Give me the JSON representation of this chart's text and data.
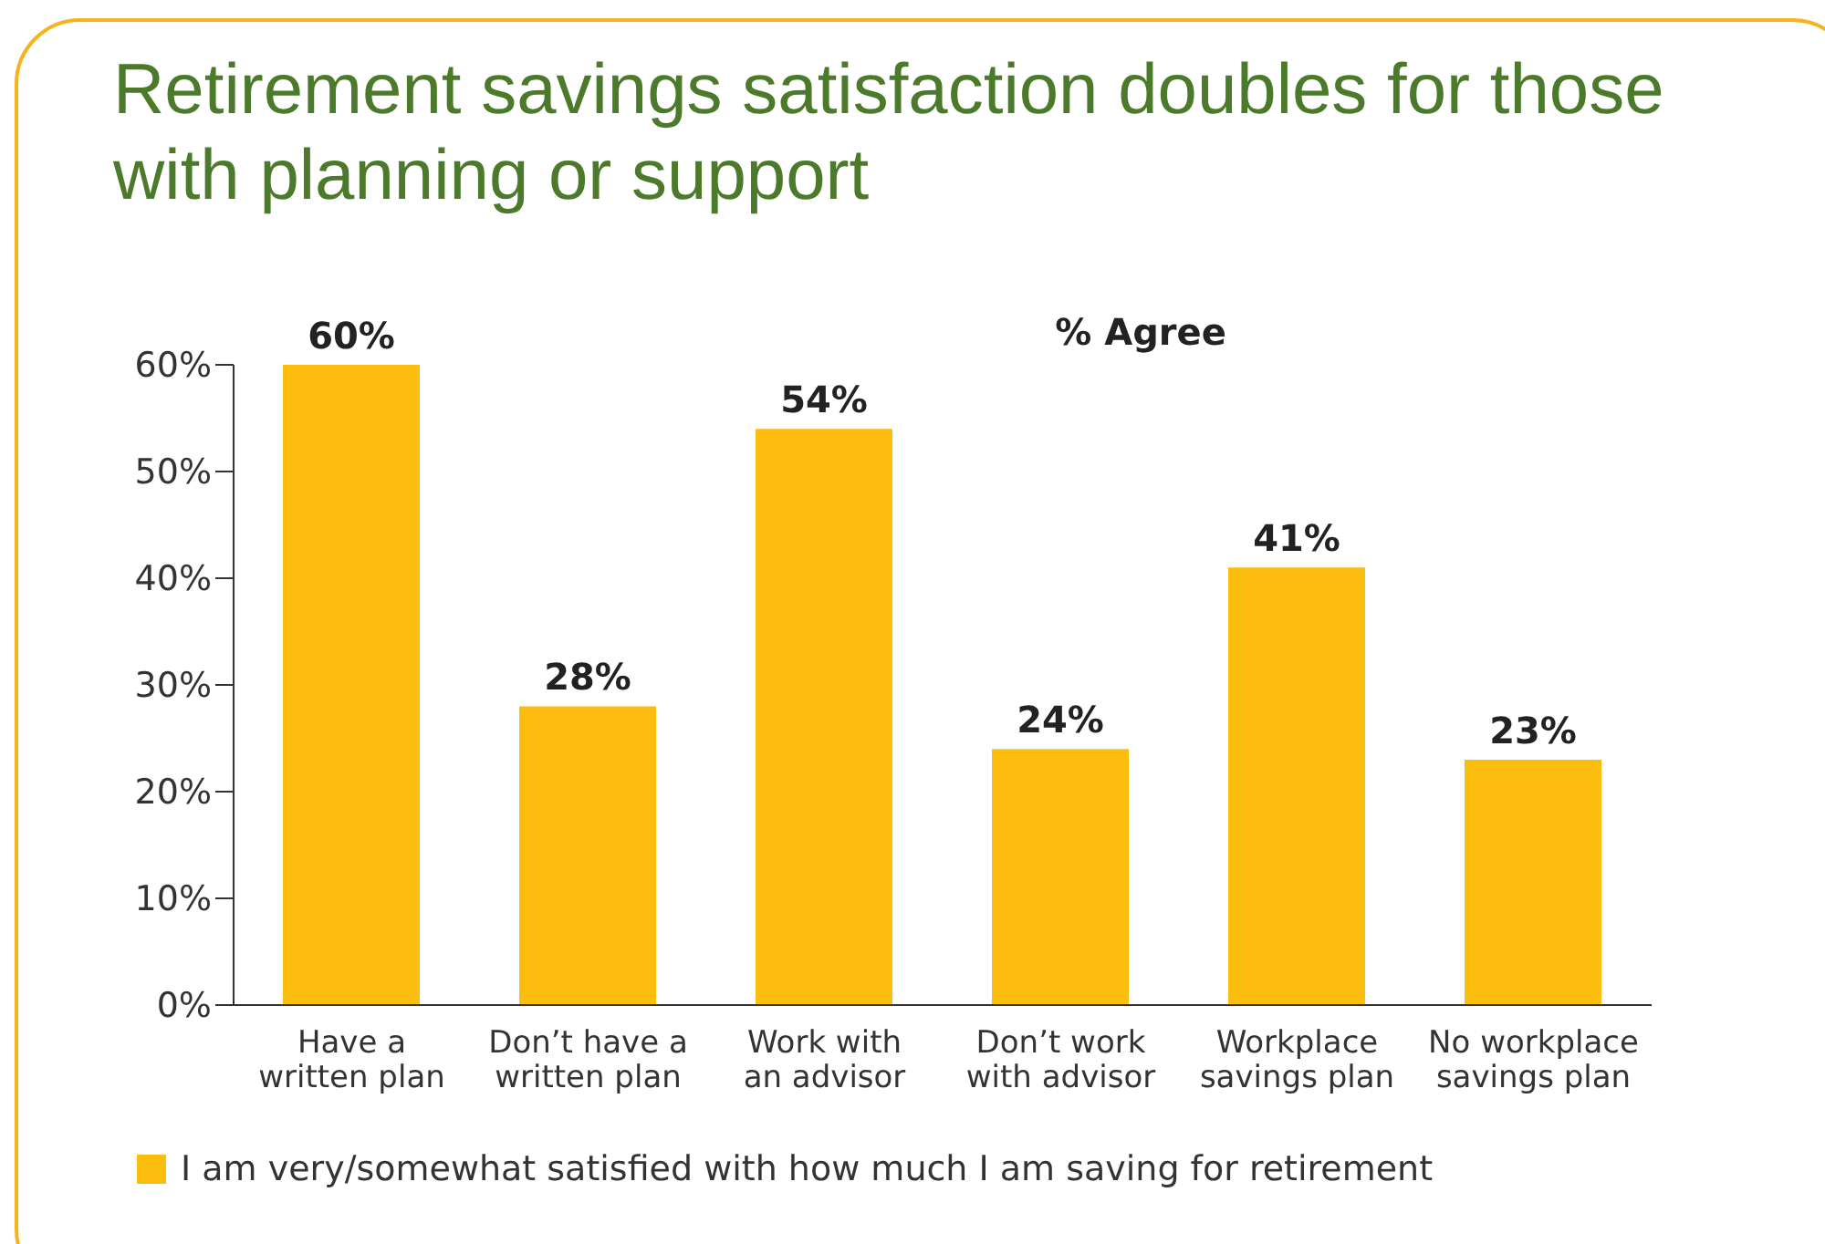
{
  "chart_data": {
    "type": "bar",
    "title": "Retirement savings satisfaction doubles for those with planning or support",
    "subtitle": "% Agree",
    "categories": [
      "Have a written plan",
      "Don’t have a written plan",
      "Work with an advisor",
      "Don’t work with advisor",
      "Workplace savings plan",
      "No workplace savings plan"
    ],
    "series": [
      {
        "name": "I am very/somewhat satisfied with how much I am saving for retirement",
        "color": "#fcbd0f",
        "values": [
          60,
          28,
          54,
          24,
          41,
          23
        ],
        "value_labels": [
          "60%",
          "28%",
          "54%",
          "24%",
          "41%",
          "23%"
        ]
      }
    ],
    "ylim": [
      0,
      60
    ],
    "yticks": [
      {
        "value": 0,
        "label": "0%"
      },
      {
        "value": 10,
        "label": "10%"
      },
      {
        "value": 20,
        "label": "20%"
      },
      {
        "value": 30,
        "label": "30%"
      },
      {
        "value": 40,
        "label": "40%"
      },
      {
        "value": 50,
        "label": "50%"
      },
      {
        "value": 60,
        "label": "60%"
      }
    ],
    "grid": false,
    "legend": "bottom left"
  }
}
